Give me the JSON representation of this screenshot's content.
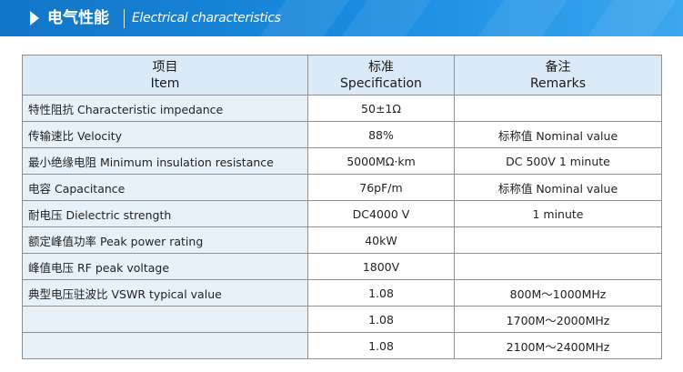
{
  "banner": {
    "title_cn": "电气性能",
    "title_en": "Electrical characteristics",
    "colors": {
      "bar": "#1a8ce0",
      "text": "#ffffff"
    },
    "icon": "triangle-arrow-right-icon"
  },
  "table": {
    "headers": {
      "item": {
        "cn": "项目",
        "en": "Item"
      },
      "spec": {
        "cn": "标准",
        "en": "Specification"
      },
      "remarks": {
        "cn": "备注",
        "en": "Remarks"
      }
    },
    "colors": {
      "header_bg": "#daeaf8",
      "item_bg": "#e7f1fa",
      "border": "#8f8f8f"
    },
    "rows": [
      {
        "item": "特性阻抗  Characteristic  impedance",
        "spec": "50±1Ω",
        "remark": ""
      },
      {
        "item": "传输速比  Velocity",
        "spec": "88%",
        "remark": "标称值  Nominal  value"
      },
      {
        "item": "最小绝缘电阻  Minimum  insulation  resistance",
        "spec": "5000MΩ·km",
        "remark": "DC  500V  1  minute"
      },
      {
        "item": "电容  Capacitance",
        "spec": "76pF/m",
        "remark": "标称值  Nominal  value"
      },
      {
        "item": "耐电压  Dielectric  strength",
        "spec": "DC4000  V",
        "remark": "1  minute"
      },
      {
        "item": "额定峰值功率  Peak  power  rating",
        "spec": "40kW",
        "remark": ""
      },
      {
        "item": "峰值电压  RF  peak  voltage",
        "spec": "1800V",
        "remark": ""
      },
      {
        "item": "典型电压驻波比  VSWR  typical  value",
        "spec": "1.08",
        "remark": "800M～1000MHz"
      },
      {
        "item": "",
        "spec": "1.08",
        "remark": "1700M～2000MHz"
      },
      {
        "item": "",
        "spec": "1.08",
        "remark": "2100M～2400MHz"
      }
    ]
  }
}
